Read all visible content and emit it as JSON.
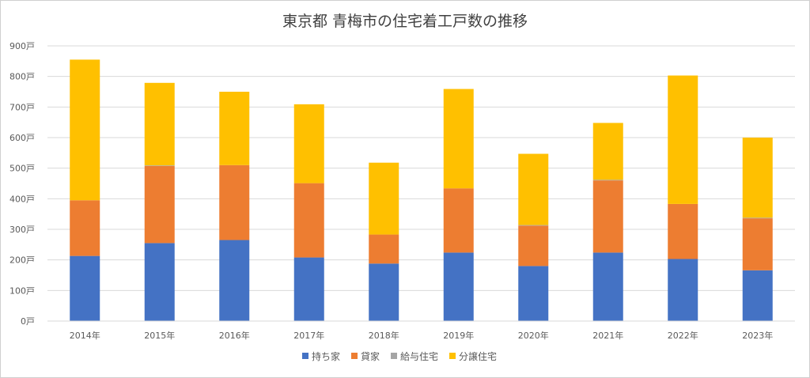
{
  "chart_data": {
    "type": "bar",
    "stacked": true,
    "title": "東京都 青梅市の住宅着工戸数の推移",
    "categories": [
      "2014年",
      "2015年",
      "2016年",
      "2017年",
      "2018年",
      "2019年",
      "2020年",
      "2021年",
      "2022年",
      "2023年"
    ],
    "y_ticks": [
      "0戸",
      "100戸",
      "200戸",
      "300戸",
      "400戸",
      "500戸",
      "600戸",
      "700戸",
      "800戸",
      "900戸"
    ],
    "ylim": [
      0,
      900
    ],
    "grid": true,
    "legend_position": "bottom",
    "series": [
      {
        "name": "持ち家",
        "color": "#4472C4",
        "values": [
          213,
          255,
          265,
          208,
          188,
          224,
          180,
          224,
          203,
          166
        ]
      },
      {
        "name": "貸家",
        "color": "#ED7D31",
        "values": [
          182,
          252,
          245,
          243,
          95,
          210,
          132,
          236,
          180,
          170
        ]
      },
      {
        "name": "給与住宅",
        "color": "#A5A5A5",
        "values": [
          0,
          2,
          0,
          0,
          0,
          0,
          2,
          2,
          0,
          2
        ]
      },
      {
        "name": "分譲住宅",
        "color": "#FFC000",
        "values": [
          460,
          270,
          240,
          258,
          235,
          325,
          233,
          186,
          420,
          262
        ]
      }
    ]
  }
}
